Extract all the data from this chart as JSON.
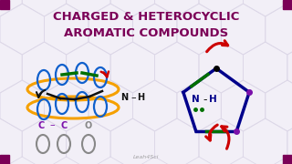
{
  "title_line1": "CHARGED & HETEROCYCLIC",
  "title_line2": "AROMATIC COMPOUNDS",
  "title_color": "#7B0057",
  "bg_color": "#f2eff7",
  "watermark": "Leah4Sci",
  "hex_color": "#ddd8e8",
  "corner_color": "#7B0057",
  "orange": "#F5A000",
  "blue": "#1060CC",
  "green": "#007000",
  "red": "#CC0000",
  "navy": "#00008B",
  "purple": "#7B10AA",
  "gray": "#888888",
  "black": "#111111"
}
